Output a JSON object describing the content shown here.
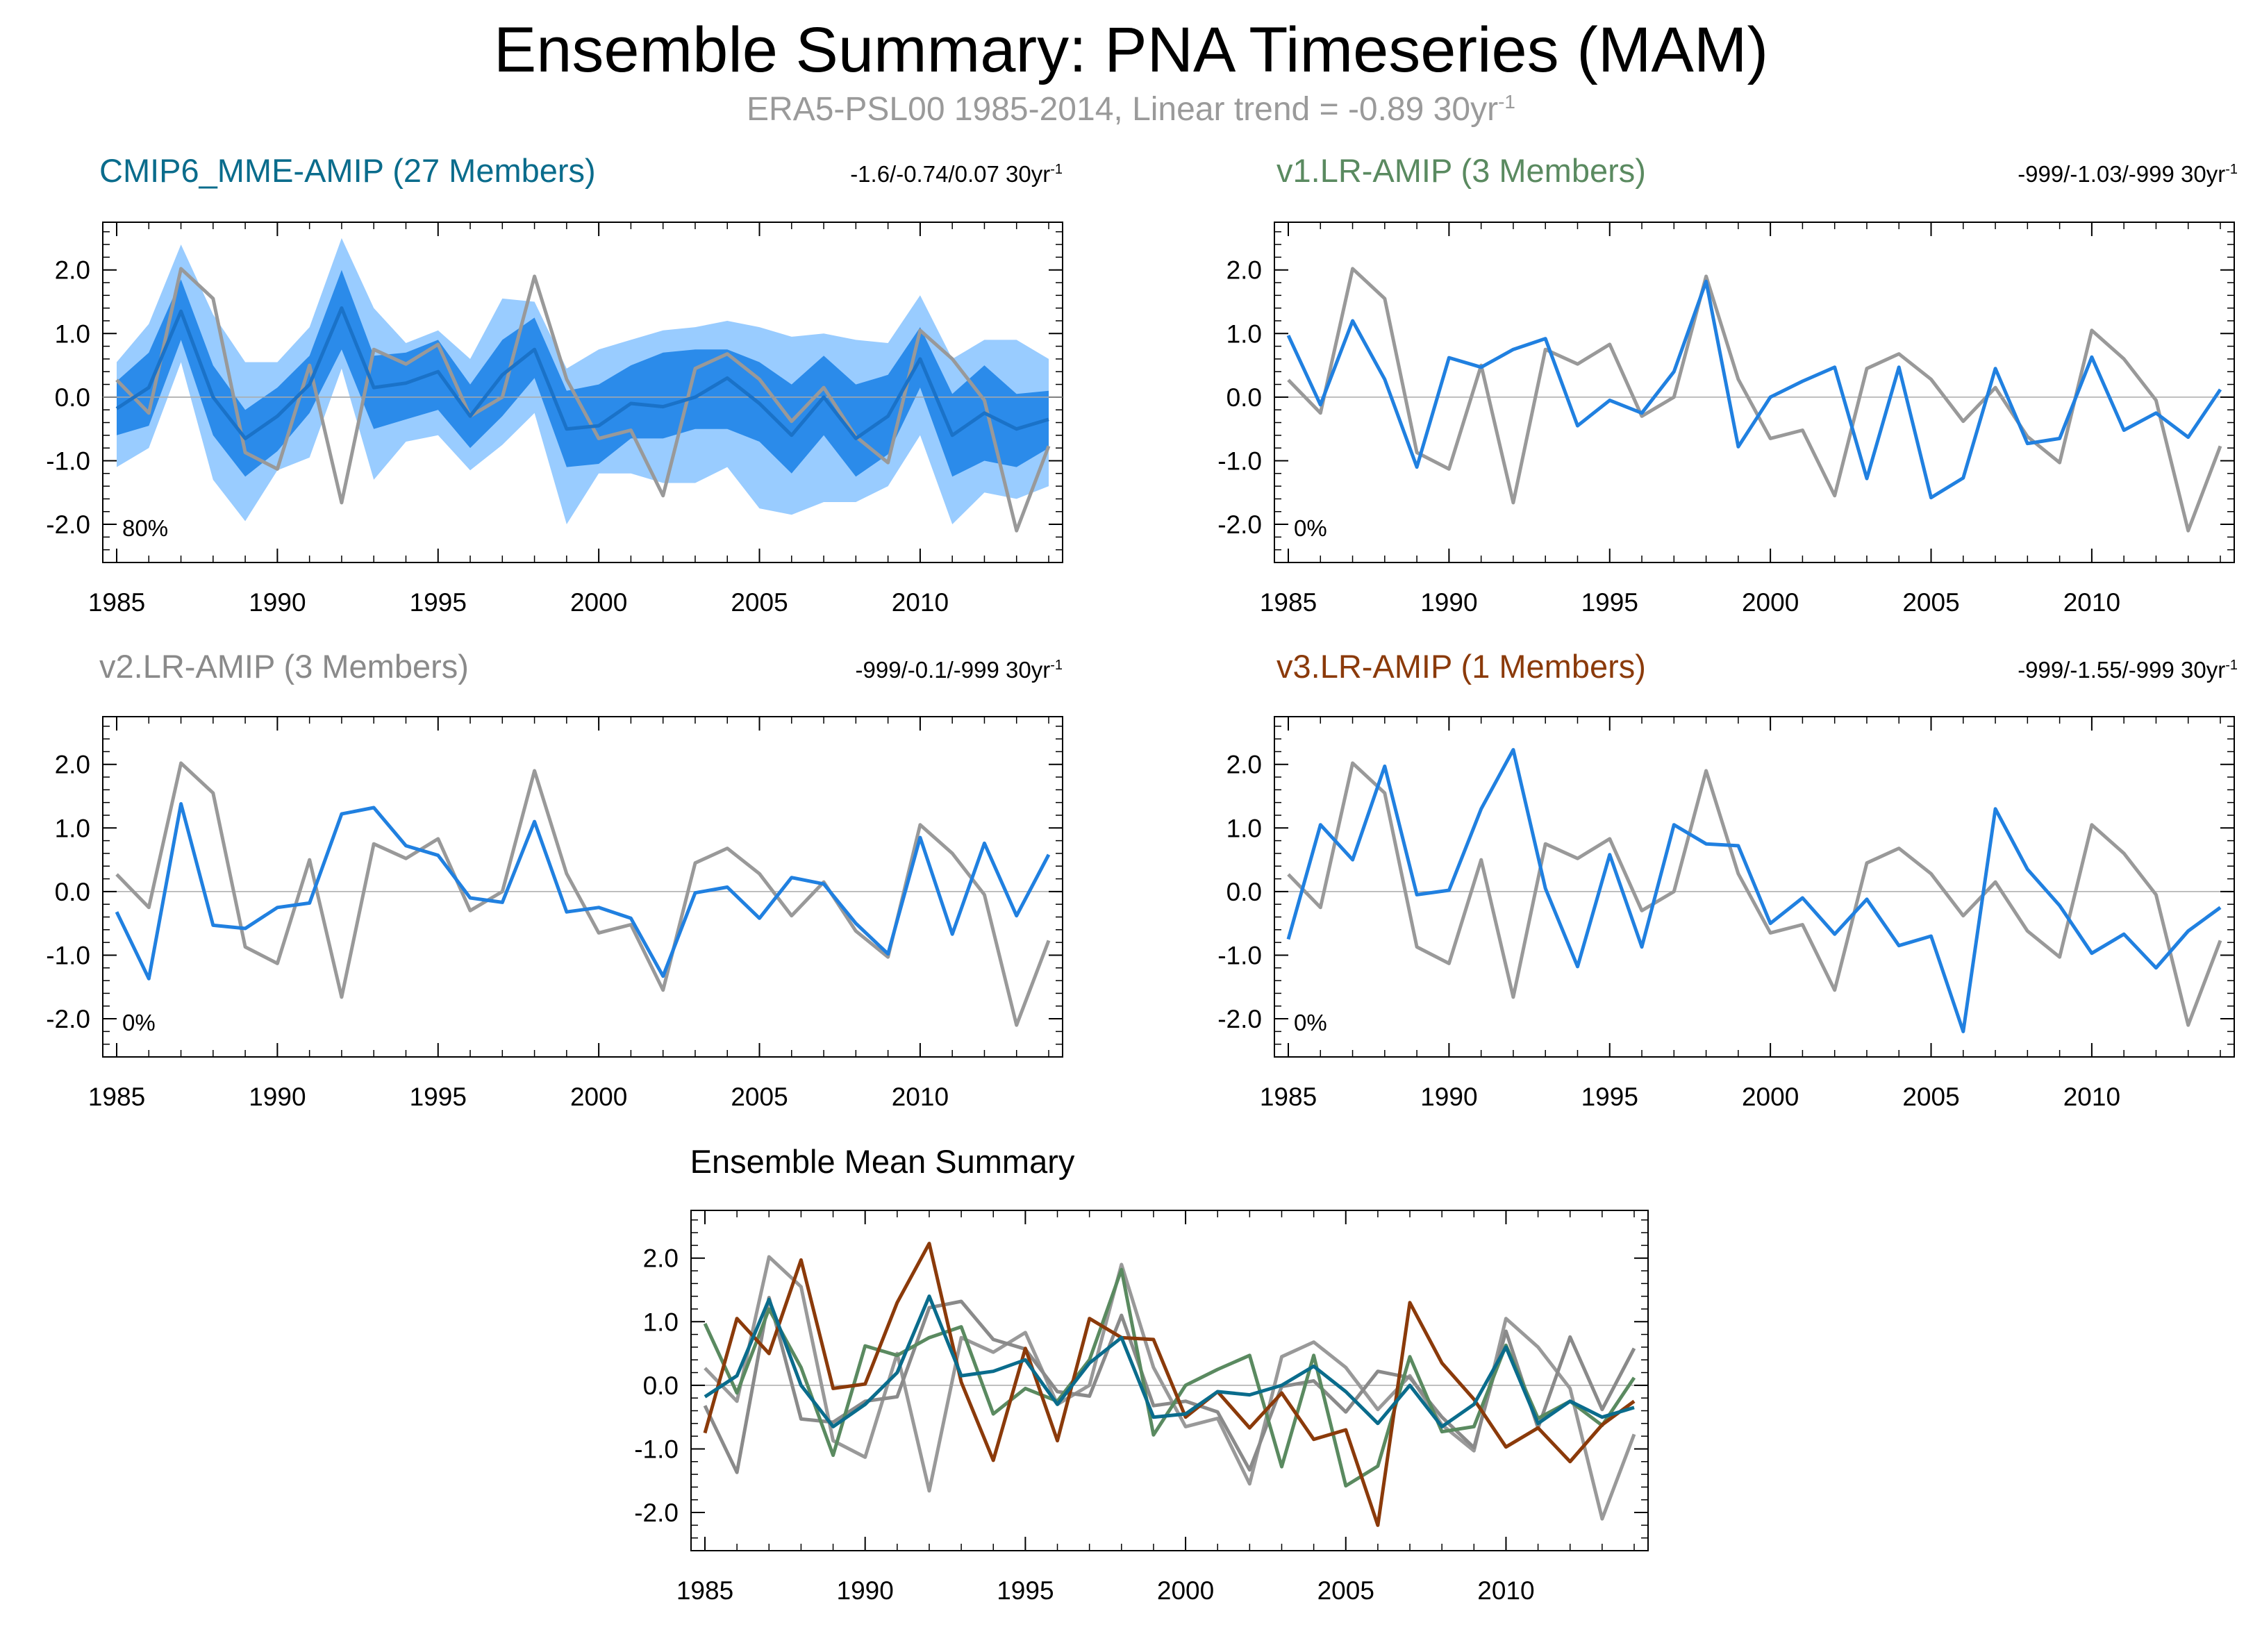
{
  "title": "Ensemble Summary: PNA Timeseries (MAM)",
  "subtitle": {
    "text": "ERA5-PSL00 1985-2014, Linear trend = -0.89 30yr",
    "superscript": "-1"
  },
  "colors": {
    "observed": "#999999",
    "member_line": "#2080e0",
    "band_outer": "#99ccff",
    "band_inner": "#2b8bea",
    "mme_mean": "#1a72c8",
    "cmip6_title": "#0a6c8c",
    "v1_title": "#5a8a60",
    "v2_title": "#8a8a8a",
    "v3_title": "#8b3a0a"
  },
  "panels": {
    "cmip6": {
      "title": "CMIP6_MME-AMIP (27 Members)",
      "trend": "-1.6/-0.74/0.07 30yr",
      "trend_sup": "-1",
      "percent": "80%"
    },
    "v1": {
      "title": "v1.LR-AMIP (3 Members)",
      "trend": "-999/-1.03/-999 30yr",
      "trend_sup": "-1",
      "percent": "0%"
    },
    "v2": {
      "title": "v2.LR-AMIP (3 Members)",
      "trend": "-999/-0.1/-999 30yr",
      "trend_sup": "-1",
      "percent": "0%"
    },
    "v3": {
      "title": "v3.LR-AMIP (1 Members)",
      "trend": "-999/-1.55/-999 30yr",
      "trend_sup": "-1",
      "percent": "0%"
    },
    "summary": {
      "title": "Ensemble Mean Summary"
    }
  },
  "chart_data": {
    "type": "line",
    "x": [
      1985,
      1986,
      1987,
      1988,
      1989,
      1990,
      1991,
      1992,
      1993,
      1994,
      1995,
      1996,
      1997,
      1998,
      1999,
      2000,
      2001,
      2002,
      2003,
      2004,
      2005,
      2006,
      2007,
      2008,
      2009,
      2010,
      2011,
      2012,
      2013,
      2014
    ],
    "xticks": [
      1985,
      1990,
      1995,
      2000,
      2005,
      2010
    ],
    "yticks": [
      2.0,
      1.0,
      0.0,
      -1.0,
      -2.0
    ],
    "ytick_labels": [
      "2.0",
      "1.0",
      "0.0",
      "-1.0",
      "-2.0"
    ],
    "xlim": [
      1985,
      2014
    ],
    "ylim": [
      -2.6,
      2.75
    ],
    "series": {
      "obs": [
        0.27,
        -0.25,
        2.02,
        1.55,
        -0.87,
        -1.13,
        0.5,
        -1.66,
        0.75,
        0.52,
        0.83,
        -0.3,
        0.0,
        1.9,
        0.28,
        -0.65,
        -0.52,
        -1.55,
        0.45,
        0.68,
        0.28,
        -0.38,
        0.15,
        -0.62,
        -1.03,
        1.05,
        0.6,
        -0.05,
        -2.1,
        -0.77
      ],
      "mme_mean": [
        -0.18,
        0.15,
        1.35,
        0.0,
        -0.65,
        -0.3,
        0.2,
        1.4,
        0.15,
        0.22,
        0.4,
        -0.3,
        0.35,
        0.75,
        -0.5,
        -0.45,
        -0.1,
        -0.15,
        0.0,
        0.3,
        -0.1,
        -0.6,
        0.0,
        -0.65,
        -0.3,
        0.6,
        -0.6,
        -0.25,
        -0.5,
        -0.35
      ],
      "mme_p10": [
        -1.1,
        -0.8,
        0.55,
        -1.3,
        -1.95,
        -1.15,
        -0.95,
        0.45,
        -1.3,
        -0.7,
        -0.6,
        -1.15,
        -0.75,
        -0.25,
        -2.0,
        -1.2,
        -1.2,
        -1.35,
        -1.35,
        -1.1,
        -1.75,
        -1.85,
        -1.65,
        -1.65,
        -1.4,
        -0.6,
        -2.0,
        -1.5,
        -1.6,
        -1.4
      ],
      "mme_p25": [
        -0.6,
        -0.45,
        0.9,
        -0.6,
        -1.25,
        -0.85,
        -0.25,
        0.75,
        -0.5,
        -0.35,
        -0.2,
        -0.8,
        -0.3,
        0.3,
        -1.1,
        -1.05,
        -0.65,
        -0.65,
        -0.5,
        -0.5,
        -0.7,
        -1.2,
        -0.6,
        -1.25,
        -0.9,
        0.15,
        -1.25,
        -1.0,
        -1.1,
        -0.8
      ],
      "mme_p75": [
        0.25,
        0.7,
        1.85,
        0.5,
        -0.2,
        0.15,
        0.65,
        2.0,
        0.65,
        0.7,
        0.9,
        0.2,
        0.9,
        1.25,
        0.1,
        0.2,
        0.5,
        0.7,
        0.75,
        0.75,
        0.55,
        0.2,
        0.65,
        0.2,
        0.35,
        1.1,
        0.05,
        0.5,
        0.05,
        0.1
      ],
      "mme_p90": [
        0.55,
        1.15,
        2.4,
        1.3,
        0.55,
        0.55,
        1.1,
        2.5,
        1.4,
        0.85,
        1.05,
        0.6,
        1.55,
        1.5,
        0.45,
        0.75,
        0.9,
        1.05,
        1.1,
        1.2,
        1.1,
        0.95,
        1.0,
        0.9,
        0.85,
        1.6,
        0.6,
        0.9,
        0.9,
        0.6
      ],
      "v1": [
        0.97,
        -0.12,
        1.2,
        0.28,
        -1.1,
        0.62,
        0.47,
        0.75,
        0.92,
        -0.45,
        -0.05,
        -0.25,
        0.4,
        1.82,
        -0.78,
        0.0,
        0.25,
        0.47,
        -1.28,
        0.47,
        -1.58,
        -1.27,
        0.45,
        -0.73,
        -0.65,
        0.63,
        -0.52,
        -0.25,
        -0.63,
        0.12
      ],
      "v2": [
        -0.32,
        -1.37,
        1.38,
        -0.53,
        -0.58,
        -0.25,
        -0.18,
        1.22,
        1.32,
        0.72,
        0.57,
        -0.1,
        -0.17,
        1.1,
        -0.32,
        -0.25,
        -0.42,
        -1.33,
        -0.02,
        0.07,
        -0.42,
        0.22,
        0.12,
        -0.5,
        -0.98,
        0.85,
        -0.67,
        0.76,
        -0.38,
        0.58
      ],
      "v3": [
        -0.75,
        1.05,
        0.5,
        1.97,
        -0.05,
        0.02,
        1.3,
        2.23,
        0.05,
        -1.18,
        0.58,
        -0.87,
        1.05,
        0.75,
        0.72,
        -0.5,
        -0.1,
        -0.67,
        -0.12,
        -0.85,
        -0.7,
        -2.2,
        1.3,
        0.35,
        -0.22,
        -0.97,
        -0.67,
        -1.2,
        -0.62,
        -0.25
      ]
    }
  }
}
